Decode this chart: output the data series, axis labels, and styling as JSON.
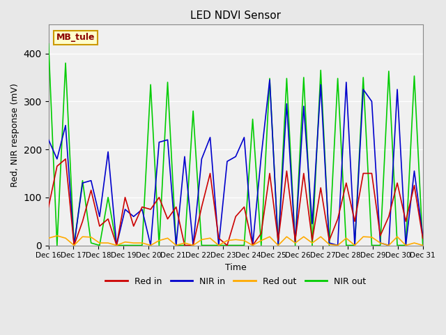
{
  "title": "LED NDVI Sensor",
  "ylabel": "Red, NIR response (mV)",
  "xlabel": "Time",
  "ylim": [
    0,
    460
  ],
  "annotation_text": "MB_tule",
  "bg_color": "#e8e8e8",
  "plot_bg_color": "#f0f0f0",
  "grid_color": "#ffffff",
  "series_colors": {
    "Red in": "#cc0000",
    "NIR in": "#0000cc",
    "Red out": "#ffaa00",
    "NIR out": "#00cc00"
  },
  "x_tick_labels": [
    "Dec 16",
    "Dec 17",
    "Dec 18",
    "Dec 19",
    "Dec 20",
    "Dec 21",
    "Dec 22",
    "Dec 23",
    "Dec 24",
    "Dec 25",
    "Dec 26",
    "Dec 27",
    "Dec 28",
    "Dec 29",
    "Dec 30",
    "Dec 31"
  ],
  "x_tick_positions": [
    0,
    1,
    2,
    3,
    4,
    5,
    6,
    7,
    8,
    9,
    10,
    11,
    12,
    13,
    14,
    15
  ],
  "red_in": [
    80,
    165,
    180,
    0,
    50,
    115,
    40,
    55,
    0,
    100,
    40,
    80,
    75,
    100,
    55,
    80,
    0,
    0,
    80,
    150,
    15,
    0,
    60,
    80,
    0,
    25,
    150,
    10,
    155,
    10,
    150,
    10,
    120,
    10,
    55,
    130,
    50,
    150,
    150,
    20,
    60,
    130,
    50,
    125,
    15
  ],
  "nir_in": [
    220,
    180,
    250,
    0,
    130,
    135,
    60,
    195,
    0,
    75,
    60,
    75,
    0,
    215,
    220,
    0,
    185,
    0,
    180,
    225,
    0,
    175,
    185,
    225,
    0,
    185,
    345,
    0,
    295,
    5,
    290,
    45,
    335,
    5,
    0,
    340,
    0,
    325,
    300,
    5,
    0,
    325,
    0,
    155,
    20
  ],
  "red_out": [
    15,
    20,
    15,
    0,
    18,
    17,
    5,
    5,
    0,
    7,
    5,
    5,
    0,
    10,
    15,
    0,
    5,
    0,
    12,
    15,
    0,
    10,
    12,
    10,
    0,
    10,
    18,
    0,
    18,
    5,
    18,
    5,
    18,
    2,
    0,
    15,
    0,
    18,
    17,
    5,
    0,
    18,
    0,
    5,
    0
  ],
  "nir_out": [
    420,
    0,
    380,
    0,
    135,
    5,
    0,
    100,
    0,
    0,
    0,
    0,
    335,
    0,
    340,
    0,
    0,
    280,
    0,
    0,
    0,
    0,
    0,
    0,
    263,
    0,
    348,
    0,
    348,
    0,
    350,
    0,
    365,
    0,
    348,
    0,
    0,
    350,
    0,
    0,
    363,
    0,
    0,
    353,
    0
  ],
  "n_points": 45
}
